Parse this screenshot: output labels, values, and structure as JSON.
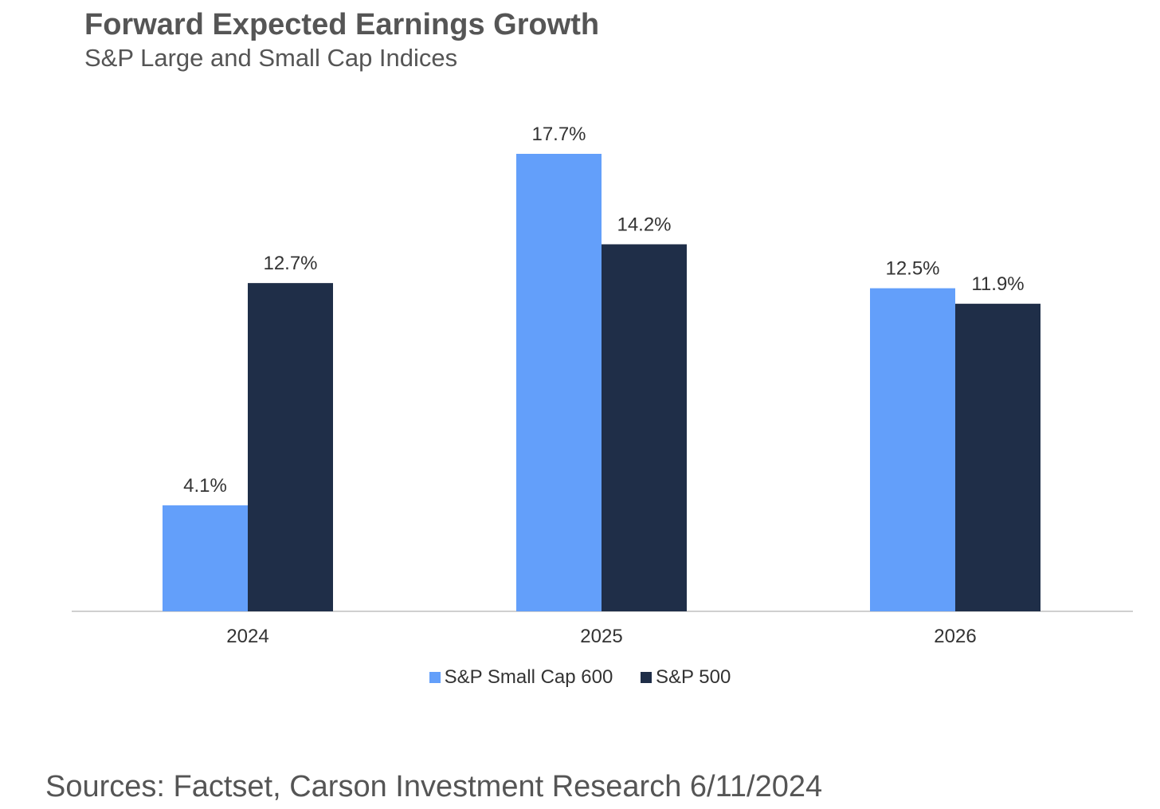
{
  "chart_data": {
    "type": "bar",
    "title": "Forward Expected Earnings Growth",
    "subtitle": "S&P Large and Small Cap Indices",
    "categories": [
      "2024",
      "2025",
      "2026"
    ],
    "series": [
      {
        "name": "S&P Small Cap 600",
        "color": "#639FFA",
        "values": [
          4.1,
          17.7,
          12.5
        ],
        "labels": [
          "4.1%",
          "17.7%",
          "12.5%"
        ]
      },
      {
        "name": "S&P 500",
        "color": "#1F2E48",
        "values": [
          12.7,
          14.2,
          11.9
        ],
        "labels": [
          "12.7%",
          "14.2%",
          "11.9%"
        ]
      }
    ],
    "xlabel": "",
    "ylabel": "",
    "ylim": [
      0,
      17.7
    ],
    "grid": false,
    "legend_position": "bottom-center",
    "source": "Sources: Factset, Carson Investment Research 6/11/2024"
  }
}
